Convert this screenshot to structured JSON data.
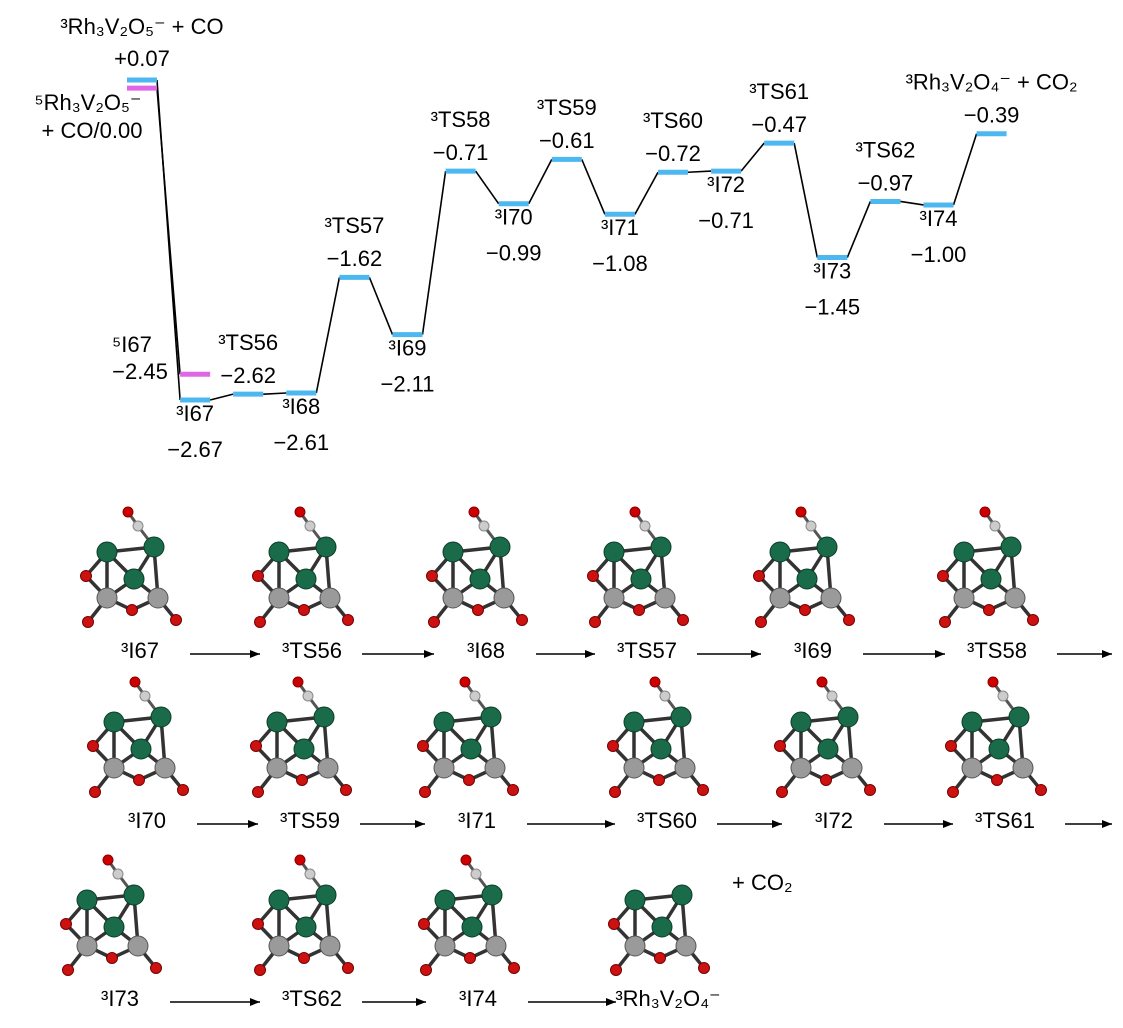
{
  "chart_data": {
    "type": "profile",
    "series": [
      {
        "color": "#4db8f0",
        "labels": [
          "³Rh₃V₂O₅⁻ + CO",
          "³I67",
          "³TS56",
          "³I68",
          "³TS57",
          "³I69",
          "³TS58",
          "³I70",
          "³TS59",
          "³I71",
          "³TS60",
          "³I72",
          "³TS61",
          "³I73",
          "³TS62",
          "³I74",
          "³Rh₃V₂O₄⁻ + CO₂"
        ],
        "values": [
          0.07,
          -2.67,
          -2.62,
          -2.61,
          -1.62,
          -2.11,
          -0.71,
          -0.99,
          -0.61,
          -1.08,
          -0.72,
          -0.71,
          -0.47,
          -1.45,
          -0.97,
          -1.0,
          -0.39
        ],
        "value_labels": [
          "+0.07",
          "−2.67",
          "−2.62",
          "−2.61",
          "−1.62",
          "−2.11",
          "−0.71",
          "−0.99",
          "−0.61",
          "−1.08",
          "−0.72",
          "−0.71",
          "−0.47",
          "−1.45",
          "−0.97",
          "−1.00",
          "−0.39"
        ]
      },
      {
        "color": "#e066e8",
        "labels": [
          "⁵Rh₃V₂O₅⁻",
          "⁵I67"
        ],
        "values": [
          0.0,
          -2.45
        ],
        "value_labels": [
          "+ CO/0.00",
          "−2.45"
        ]
      }
    ]
  },
  "structures": {
    "rows": [
      [
        "³I67",
        "³TS56",
        "³I68",
        "³TS57",
        "³I69",
        "³TS58"
      ],
      [
        "³I70",
        "³TS59",
        "³I71",
        "³TS60",
        "³I72",
        "³TS61"
      ],
      [
        "³I73",
        "³TS62",
        "³I74",
        "³Rh₃V₂O₄⁻"
      ]
    ],
    "byproduct": "+ CO₂"
  }
}
